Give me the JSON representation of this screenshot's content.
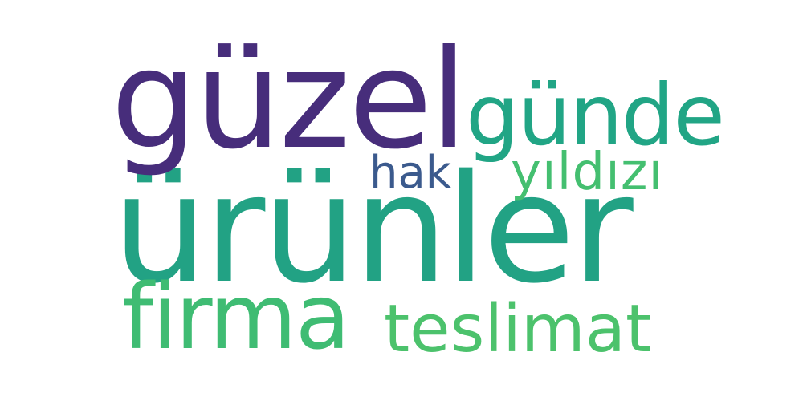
{
  "word_cloud": {
    "words": [
      {
        "id": "guzel",
        "text": "güzel",
        "color": "#472d7b"
      },
      {
        "id": "gunde",
        "text": "günde",
        "color": "#21a585"
      },
      {
        "id": "hak",
        "text": "hak",
        "color": "#3b5a8d"
      },
      {
        "id": "yildizi",
        "text": "yıldızı",
        "color": "#44bf70"
      },
      {
        "id": "urunler",
        "text": "ürünler",
        "color": "#22a284"
      },
      {
        "id": "firma",
        "text": "firma",
        "color": "#3fbc73"
      },
      {
        "id": "teslimat",
        "text": "teslimat",
        "color": "#4cc26c"
      }
    ]
  }
}
